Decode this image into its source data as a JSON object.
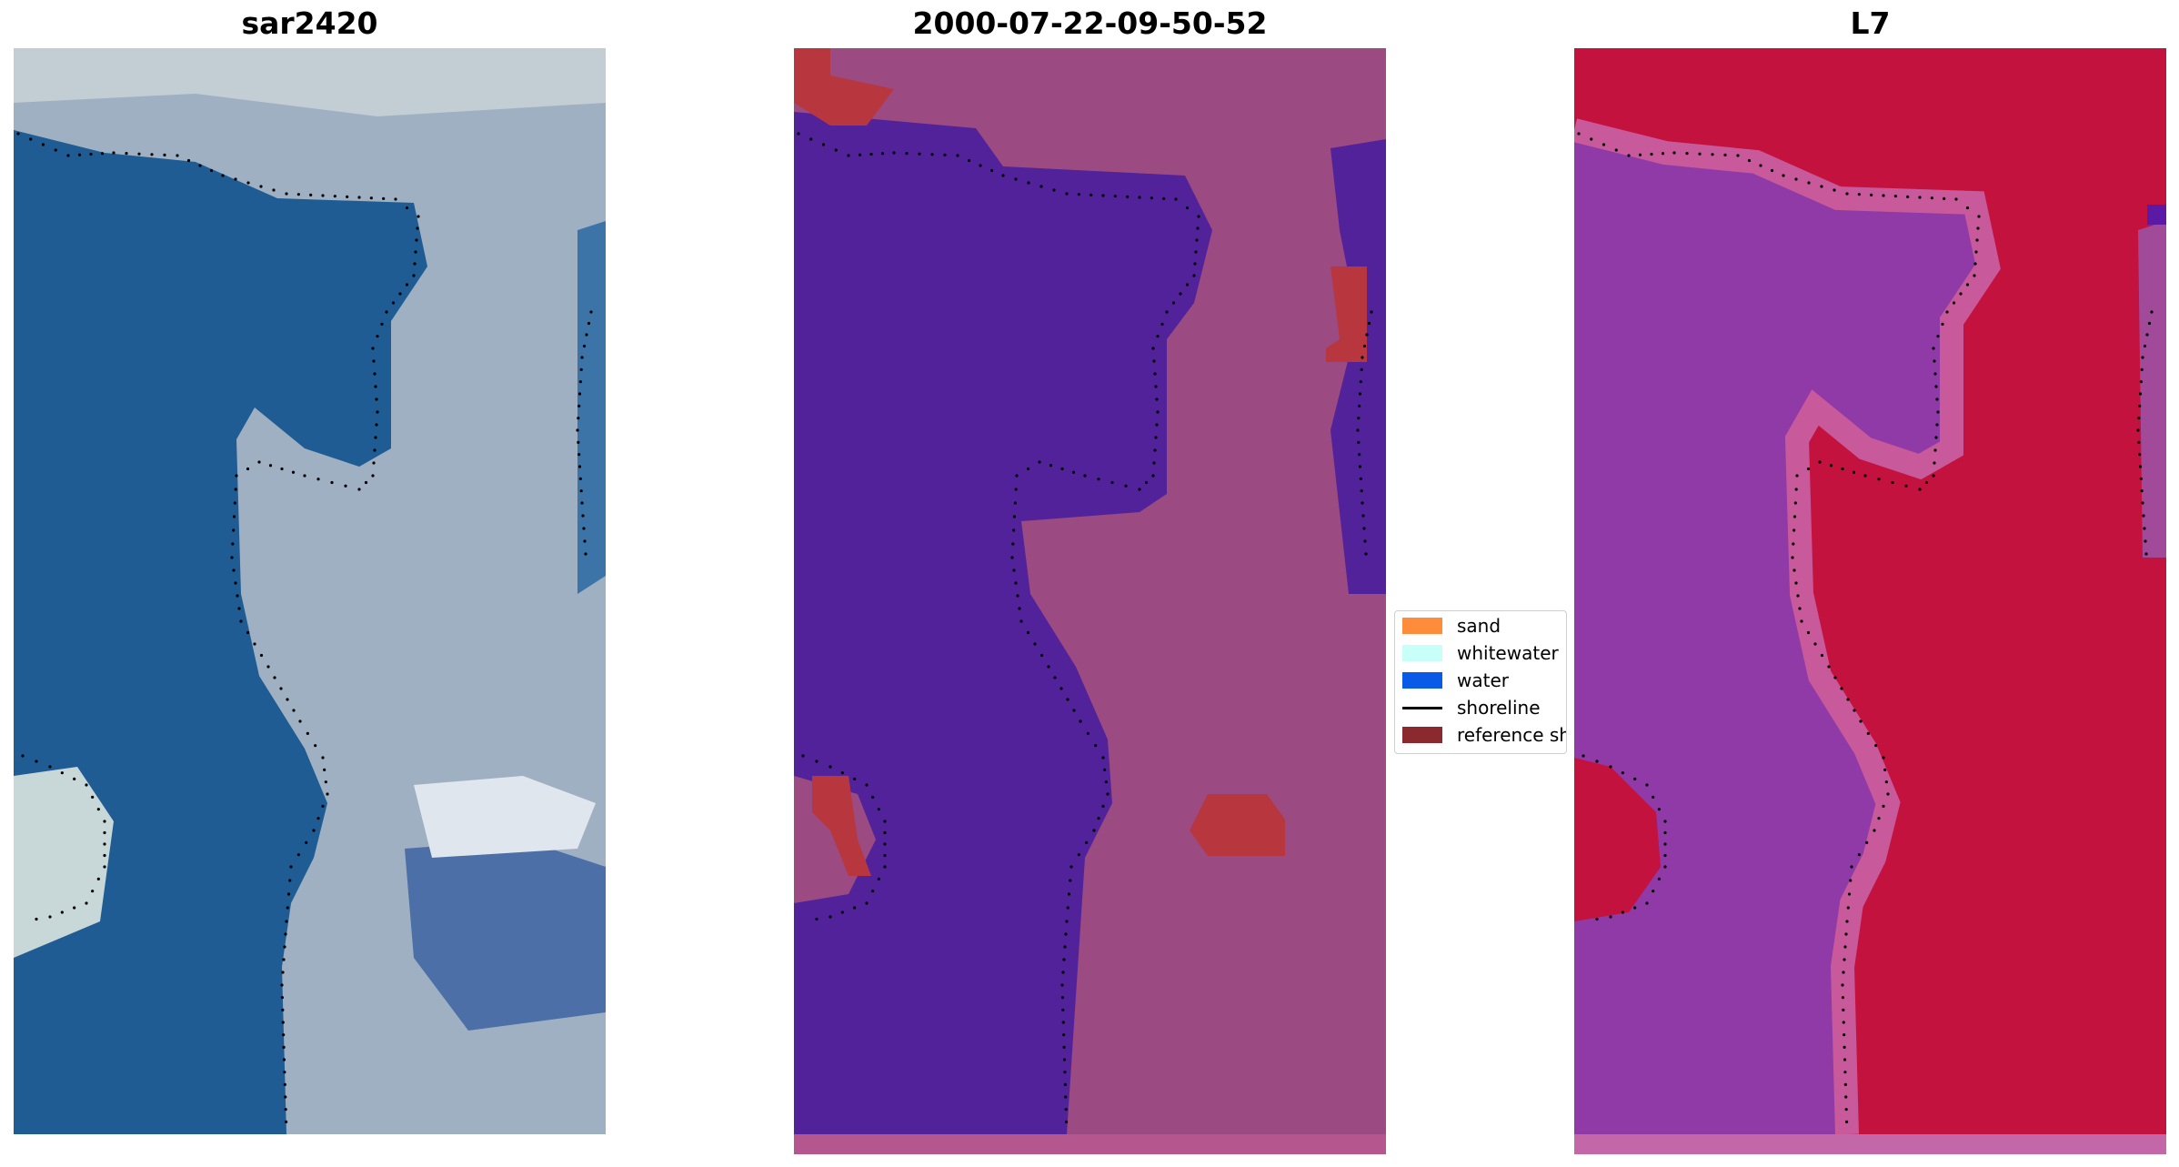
{
  "panels": [
    {
      "title": "sar2420"
    },
    {
      "title": "2000-07-22-09-50-52"
    },
    {
      "title": "L7"
    }
  ],
  "legend": {
    "items": [
      {
        "label": "sand",
        "color": "#ff8c3a",
        "kind": "patch"
      },
      {
        "label": "whitewater",
        "color": "#c8fff8",
        "kind": "patch"
      },
      {
        "label": "water",
        "color": "#0a5ae8",
        "kind": "patch"
      },
      {
        "label": "shoreline",
        "color": "#000000",
        "kind": "line"
      },
      {
        "label": "reference sh",
        "color": "#8b2a2e",
        "kind": "patch"
      }
    ]
  },
  "colors": {
    "rgb_water": "#1f5c94",
    "rgb_land": "#a9b4c2",
    "class_water": "#52229a",
    "class_land": "#9b4a82",
    "class_bottom_strip": "#b5568e",
    "class_reference_patch": "#b8373f",
    "index_water": "#8f3aa6",
    "index_land": "#c4123f",
    "index_bottom_strip": "#c467a8",
    "shoreline_dots": "#000000"
  }
}
